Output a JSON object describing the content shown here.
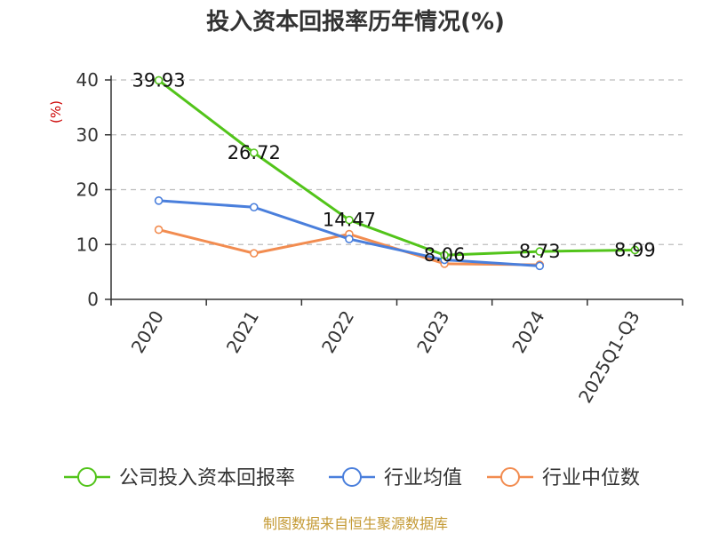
{
  "chart_data": {
    "type": "line",
    "title": "投入资本回报率历年情况(%)",
    "ylabel": "(%)",
    "xlabel": "",
    "categories": [
      "2020",
      "2021",
      "2022",
      "2023",
      "2024",
      "2025Q1-Q3"
    ],
    "ylim": [
      0,
      40
    ],
    "yticks": [
      0,
      10,
      20,
      30,
      40
    ],
    "grid": true,
    "legend_position": "bottom",
    "series": [
      {
        "name": "公司投入资本回报率",
        "color": "#52c41a",
        "values": [
          39.93,
          26.72,
          14.47,
          8.06,
          8.73,
          8.99
        ],
        "labels": [
          "39.93",
          "26.72",
          "14.47",
          "8.06",
          "8.73",
          "8.99"
        ]
      },
      {
        "name": "行业均值",
        "color": "#4a7fdc",
        "values": [
          18.0,
          16.8,
          11.0,
          7.2,
          6.1,
          null
        ]
      },
      {
        "name": "行业中位数",
        "color": "#f28c50",
        "values": [
          12.7,
          8.4,
          11.9,
          6.5,
          6.3,
          null
        ]
      }
    ]
  },
  "source_note": "制图数据来自恒生聚源数据库"
}
